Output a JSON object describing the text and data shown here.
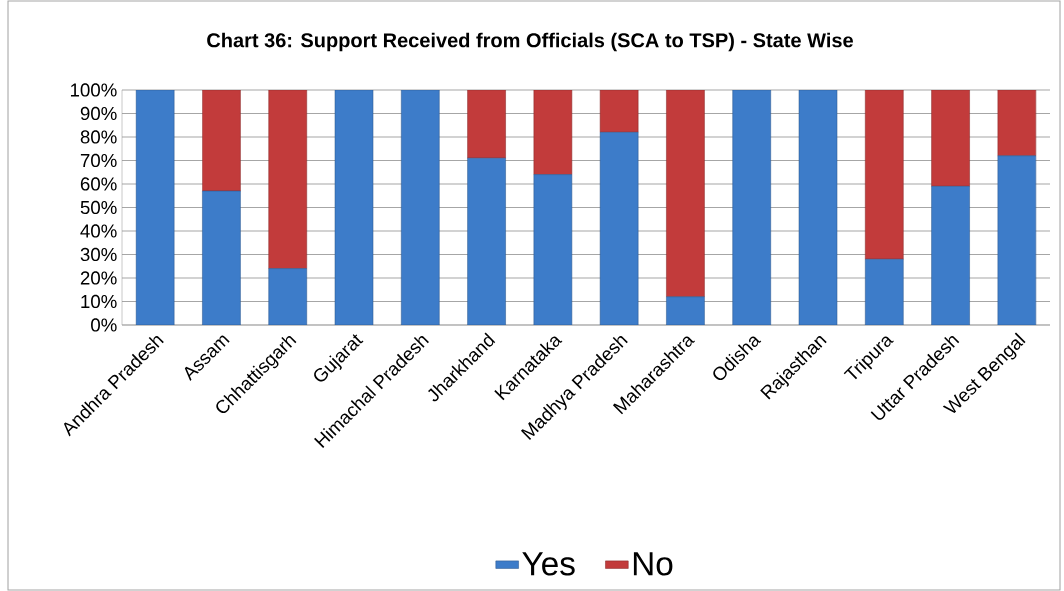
{
  "chart_data": {
    "type": "bar",
    "title": "Chart 36: Support Received from Officials (SCA to TSP) - State Wise",
    "categories": [
      "Andhra Pradesh",
      "Assam",
      "Chhattisgarh",
      "Gujarat",
      "Himachal Pradesh",
      "Jharkhand",
      "Karnataka",
      "Madhya Pradesh",
      "Maharashtra",
      "Odisha",
      "Rajasthan",
      "Tripura",
      "Uttar Pradesh",
      "West Bengal"
    ],
    "series": [
      {
        "name": "Yes",
        "color": "#3d7cc9",
        "values": [
          100,
          57,
          24,
          100,
          100,
          71,
          64,
          82,
          12,
          100,
          100,
          28,
          59,
          72
        ]
      },
      {
        "name": "No",
        "color": "#c23b3b",
        "values": [
          0,
          43,
          76,
          0,
          0,
          29,
          36,
          18,
          88,
          0,
          0,
          72,
          41,
          28
        ]
      }
    ],
    "stacked": true,
    "ylim": [
      0,
      100
    ],
    "yticks": [
      {
        "value": 0,
        "label": "0%"
      },
      {
        "value": 10,
        "label": "10%"
      },
      {
        "value": 20,
        "label": "20%"
      },
      {
        "value": 30,
        "label": "30%"
      },
      {
        "value": 40,
        "label": "40%"
      },
      {
        "value": 50,
        "label": "50%"
      },
      {
        "value": 60,
        "label": "60%"
      },
      {
        "value": 70,
        "label": "70%"
      },
      {
        "value": 80,
        "label": "80%"
      },
      {
        "value": 90,
        "label": "90%"
      },
      {
        "value": 100,
        "label": "100%"
      }
    ],
    "grid": "y",
    "legend": "bottom"
  }
}
